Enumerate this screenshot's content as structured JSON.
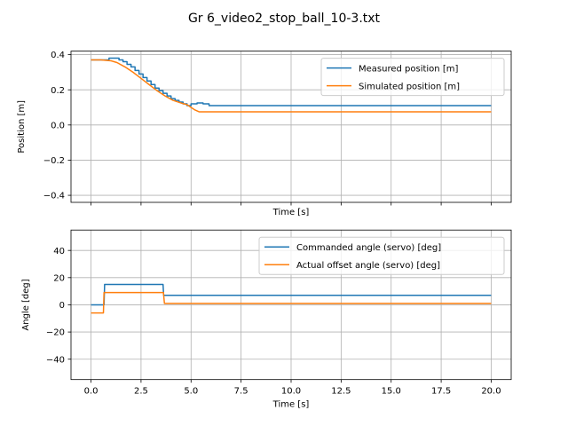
{
  "figure": {
    "title": "Gr 6_video2_stop_ball_10-3.txt"
  },
  "chart_data": [
    {
      "type": "line",
      "xlabel": "Time [s]",
      "ylabel": "Position [m]",
      "xlim": [
        -1.0,
        21.0
      ],
      "ylim": [
        -0.44,
        0.42
      ],
      "xticks": [
        0,
        2.5,
        5,
        7.5,
        10,
        12.5,
        15,
        17.5,
        20
      ],
      "yticks": [
        -0.4,
        -0.2,
        0.0,
        0.2,
        0.4
      ],
      "ytick_labels": [
        "−0.4",
        "−0.2",
        "0.0",
        "0.2",
        "0.4"
      ],
      "show_xtick_labels": false,
      "grid": true,
      "legend_position": "upper right",
      "series": [
        {
          "name": "Measured position [m]",
          "color": "#1f77b4",
          "step": true,
          "x": [
            0.0,
            0.5,
            0.9,
            1.1,
            1.4,
            1.6,
            1.8,
            2.0,
            2.2,
            2.4,
            2.6,
            2.8,
            3.0,
            3.2,
            3.4,
            3.6,
            3.8,
            4.0,
            4.2,
            4.4,
            4.6,
            4.8,
            5.0,
            5.3,
            5.6,
            5.9,
            20.0
          ],
          "y": [
            0.37,
            0.37,
            0.38,
            0.38,
            0.37,
            0.36,
            0.345,
            0.33,
            0.31,
            0.29,
            0.27,
            0.25,
            0.23,
            0.21,
            0.195,
            0.18,
            0.165,
            0.15,
            0.14,
            0.13,
            0.12,
            0.11,
            0.12,
            0.125,
            0.12,
            0.11,
            0.11
          ]
        },
        {
          "name": "Simulated position [m]",
          "color": "#ff7f0e",
          "step": false,
          "x": [
            0.0,
            0.5,
            1.0,
            1.3,
            1.7,
            2.1,
            2.5,
            2.9,
            3.3,
            3.7,
            4.1,
            4.5,
            4.8,
            5.0,
            5.2,
            5.4,
            20.0
          ],
          "y": [
            0.37,
            0.37,
            0.365,
            0.355,
            0.33,
            0.3,
            0.265,
            0.23,
            0.195,
            0.165,
            0.14,
            0.125,
            0.115,
            0.1,
            0.085,
            0.075,
            0.075
          ]
        }
      ]
    },
    {
      "type": "line",
      "xlabel": "Time [s]",
      "ylabel": "Angle [deg]",
      "xlim": [
        -1.0,
        21.0
      ],
      "ylim": [
        -55,
        55
      ],
      "xticks": [
        0,
        2.5,
        5,
        7.5,
        10,
        12.5,
        15,
        17.5,
        20
      ],
      "xtick_labels": [
        "0.0",
        "2.5",
        "5.0",
        "7.5",
        "10.0",
        "12.5",
        "15.0",
        "17.5",
        "20.0"
      ],
      "yticks": [
        -40,
        -20,
        0,
        20,
        40
      ],
      "ytick_labels": [
        "−40",
        "−20",
        "0",
        "20",
        "40"
      ],
      "show_xtick_labels": true,
      "grid": true,
      "legend_position": "upper right",
      "series": [
        {
          "name": "Commanded angle (servo) [deg]",
          "color": "#1f77b4",
          "step": false,
          "x": [
            0.0,
            0.65,
            0.65,
            0.68,
            3.6,
            3.63,
            20.0
          ],
          "y": [
            0,
            0,
            0,
            15,
            15,
            7,
            7
          ]
        },
        {
          "name": "Actual offset angle (servo) [deg]",
          "color": "#ff7f0e",
          "step": false,
          "x": [
            0.0,
            0.62,
            0.65,
            3.62,
            3.67,
            20.0
          ],
          "y": [
            -6,
            -6,
            9,
            9,
            1,
            1
          ]
        }
      ]
    }
  ]
}
